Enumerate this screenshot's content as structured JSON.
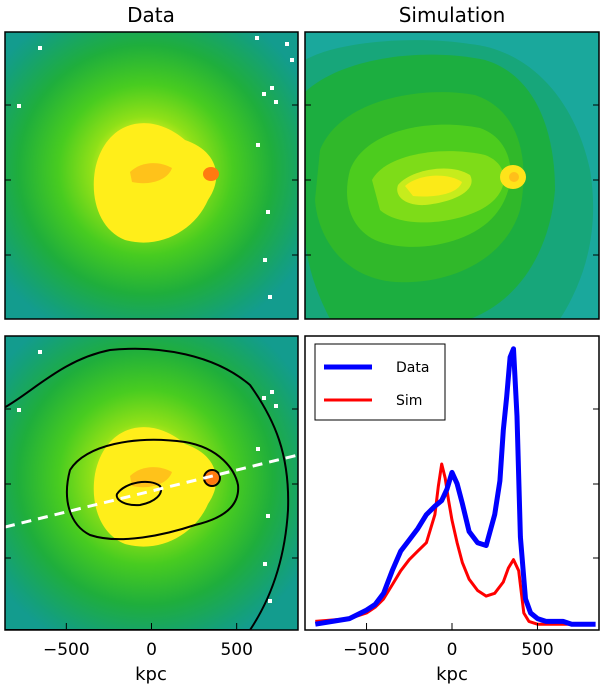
{
  "figure": {
    "panels": {
      "data": {
        "title": "Data"
      },
      "sim": {
        "title": "Simulation"
      }
    },
    "overlay": {
      "contours": 3,
      "cut_line_style": "white dashed"
    }
  },
  "chart_data": {
    "type": "line",
    "title": "",
    "xlabel": "kpc",
    "ylabel": "",
    "xlim": [
      -860,
      860
    ],
    "ylim": [
      0,
      1
    ],
    "xticks": [
      -500,
      0,
      500
    ],
    "x_tick_labels": [
      "−500",
      "0",
      "500"
    ],
    "legend_position": "top-left",
    "series": [
      {
        "name": "Data",
        "color": "#0000ff",
        "x": [
          -800,
          -700,
          -600,
          -500,
          -450,
          -400,
          -350,
          -300,
          -250,
          -200,
          -150,
          -100,
          -60,
          -30,
          0,
          30,
          60,
          100,
          150,
          200,
          250,
          280,
          300,
          320,
          340,
          360,
          380,
          400,
          430,
          460,
          500,
          550,
          600,
          650,
          700,
          750,
          800,
          840
        ],
        "y": [
          0.01,
          0.02,
          0.03,
          0.06,
          0.08,
          0.12,
          0.2,
          0.27,
          0.31,
          0.35,
          0.4,
          0.43,
          0.45,
          0.49,
          0.55,
          0.51,
          0.44,
          0.34,
          0.3,
          0.29,
          0.4,
          0.52,
          0.7,
          0.82,
          0.96,
          0.99,
          0.75,
          0.32,
          0.1,
          0.05,
          0.03,
          0.02,
          0.02,
          0.02,
          0.01,
          0.01,
          0.01,
          0.01
        ]
      },
      {
        "name": "Sim",
        "color": "#ff0000",
        "x": [
          -800,
          -600,
          -500,
          -450,
          -400,
          -350,
          -300,
          -250,
          -200,
          -150,
          -100,
          -80,
          -60,
          -40,
          -20,
          0,
          30,
          60,
          100,
          150,
          200,
          250,
          300,
          330,
          360,
          390,
          420,
          450,
          500,
          600,
          700,
          800
        ],
        "y": [
          0.02,
          0.03,
          0.05,
          0.07,
          0.1,
          0.15,
          0.2,
          0.24,
          0.27,
          0.3,
          0.4,
          0.5,
          0.58,
          0.53,
          0.45,
          0.38,
          0.3,
          0.23,
          0.17,
          0.13,
          0.11,
          0.12,
          0.16,
          0.21,
          0.24,
          0.2,
          0.05,
          0.02,
          0.01,
          0.01,
          0.01,
          0.01
        ]
      }
    ]
  }
}
